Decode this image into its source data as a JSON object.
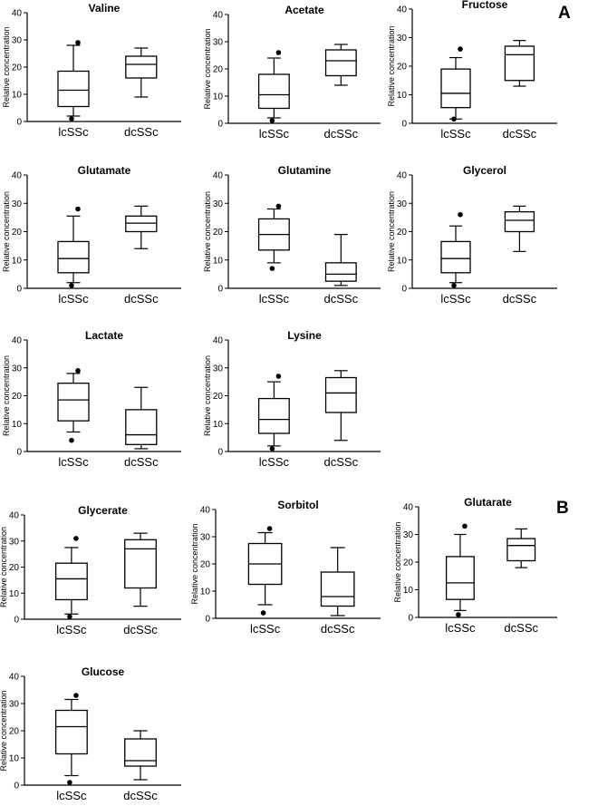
{
  "panel_labels": {
    "a": "A",
    "b": "B"
  },
  "common": {
    "ylabel": "Relative concentration",
    "categories": [
      "lcSSc",
      "dcSSc"
    ],
    "yticks": [
      "0",
      "10",
      "20",
      "30",
      "40"
    ],
    "ylim": [
      0,
      40
    ]
  },
  "chart_data": [
    {
      "type": "box",
      "panel": "A",
      "title": "Valine",
      "ylabel": "Relative concentration",
      "categories": [
        "lcSSc",
        "dcSSc"
      ],
      "ylim": [
        0,
        40
      ],
      "series": [
        {
          "name": "lcSSc",
          "min": 2,
          "q1": 5.5,
          "median": 11.5,
          "q3": 18.5,
          "max": 28,
          "outliers": [
            29,
            1
          ]
        },
        {
          "name": "dcSSc",
          "min": 9,
          "q1": 16,
          "median": 21,
          "q3": 24,
          "max": 27,
          "outliers": []
        }
      ]
    },
    {
      "type": "box",
      "panel": "A",
      "title": "Acetate",
      "ylabel": "Relative concentration",
      "categories": [
        "lcSSc",
        "dcSSc"
      ],
      "ylim": [
        0,
        40
      ],
      "series": [
        {
          "name": "lcSSc",
          "min": 2,
          "q1": 5.5,
          "median": 10.5,
          "q3": 18,
          "max": 24,
          "outliers": [
            26,
            1
          ]
        },
        {
          "name": "dcSSc",
          "min": 14,
          "q1": 17.5,
          "median": 23,
          "q3": 27,
          "max": 29,
          "outliers": []
        }
      ]
    },
    {
      "type": "box",
      "panel": "A",
      "title": "Fructose",
      "ylabel": "Relative concentration",
      "categories": [
        "lcSSc",
        "dcSSc"
      ],
      "ylim": [
        0,
        40
      ],
      "series": [
        {
          "name": "lcSSc",
          "min": 1.5,
          "q1": 5.5,
          "median": 10.5,
          "q3": 19,
          "max": 23,
          "outliers": [
            26,
            1.5
          ]
        },
        {
          "name": "dcSSc",
          "min": 13,
          "q1": 15,
          "median": 24,
          "q3": 27,
          "max": 29,
          "outliers": []
        }
      ]
    },
    {
      "type": "box",
      "panel": "A",
      "title": "Glutamate",
      "ylabel": "Relative concentration",
      "categories": [
        "lcSSc",
        "dcSSc"
      ],
      "ylim": [
        0,
        40
      ],
      "series": [
        {
          "name": "lcSSc",
          "min": 2,
          "q1": 5.5,
          "median": 10.5,
          "q3": 16.5,
          "max": 25.5,
          "outliers": [
            28,
            1
          ]
        },
        {
          "name": "dcSSc",
          "min": 14,
          "q1": 20,
          "median": 23,
          "q3": 25.5,
          "max": 29,
          "outliers": []
        }
      ]
    },
    {
      "type": "box",
      "panel": "A",
      "title": "Glutamine",
      "ylabel": "Relative concentration",
      "categories": [
        "lcSSc",
        "dcSSc"
      ],
      "ylim": [
        0,
        40
      ],
      "series": [
        {
          "name": "lcSSc",
          "min": 9,
          "q1": 13.5,
          "median": 19,
          "q3": 24.5,
          "max": 28,
          "outliers": [
            29,
            7
          ]
        },
        {
          "name": "dcSSc",
          "min": 1,
          "q1": 2.5,
          "median": 5,
          "q3": 9,
          "max": 19,
          "outliers": []
        }
      ]
    },
    {
      "type": "box",
      "panel": "A",
      "title": "Glycerol",
      "ylabel": "Relative concentration",
      "categories": [
        "lcSSc",
        "dcSSc"
      ],
      "ylim": [
        0,
        40
      ],
      "series": [
        {
          "name": "lcSSc",
          "min": 2,
          "q1": 5.5,
          "median": 10.5,
          "q3": 16.5,
          "max": 22,
          "outliers": [
            26,
            1
          ]
        },
        {
          "name": "dcSSc",
          "min": 13,
          "q1": 20,
          "median": 24,
          "q3": 27,
          "max": 29,
          "outliers": []
        }
      ]
    },
    {
      "type": "box",
      "panel": "A",
      "title": "Lactate",
      "ylabel": "Relative concentration",
      "categories": [
        "lcSSc",
        "dcSSc"
      ],
      "ylim": [
        0,
        40
      ],
      "series": [
        {
          "name": "lcSSc",
          "min": 7,
          "q1": 11,
          "median": 18.5,
          "q3": 24.5,
          "max": 28,
          "outliers": [
            29,
            4
          ]
        },
        {
          "name": "dcSSc",
          "min": 1,
          "q1": 2.5,
          "median": 6,
          "q3": 15,
          "max": 23,
          "outliers": []
        }
      ]
    },
    {
      "type": "box",
      "panel": "A",
      "title": "Lysine",
      "ylabel": "Relative concentration",
      "categories": [
        "lcSSc",
        "dcSSc"
      ],
      "ylim": [
        0,
        40
      ],
      "series": [
        {
          "name": "lcSSc",
          "min": 2,
          "q1": 6.5,
          "median": 11.5,
          "q3": 19,
          "max": 25,
          "outliers": [
            27,
            1
          ]
        },
        {
          "name": "dcSSc",
          "min": 4,
          "q1": 14,
          "median": 21,
          "q3": 26.5,
          "max": 29,
          "outliers": []
        }
      ]
    },
    {
      "type": "box",
      "panel": "B",
      "title": "Glycerate",
      "ylabel": "Relative concentration",
      "categories": [
        "lcSSc",
        "dcSSc"
      ],
      "ylim": [
        0,
        40
      ],
      "series": [
        {
          "name": "lcSSc",
          "min": 2,
          "q1": 7.5,
          "median": 15.5,
          "q3": 21.5,
          "max": 27.5,
          "outliers": [
            31,
            1
          ]
        },
        {
          "name": "dcSSc",
          "min": 5,
          "q1": 12,
          "median": 27,
          "q3": 30.5,
          "max": 33,
          "outliers": []
        }
      ]
    },
    {
      "type": "box",
      "panel": "B",
      "title": "Sorbitol",
      "ylabel": "Relative concentration",
      "categories": [
        "lcSSc",
        "dcSSc"
      ],
      "ylim": [
        0,
        40
      ],
      "series": [
        {
          "name": "lcSSc",
          "min": 5,
          "q1": 12.5,
          "median": 20,
          "q3": 27.5,
          "max": 31.5,
          "outliers": [
            33,
            2
          ]
        },
        {
          "name": "dcSSc",
          "min": 1,
          "q1": 4.5,
          "median": 8,
          "q3": 17,
          "max": 26,
          "outliers": []
        }
      ]
    },
    {
      "type": "box",
      "panel": "B",
      "title": "Glutarate",
      "ylabel": "Relative concentration",
      "categories": [
        "lcSSc",
        "dcSSc"
      ],
      "ylim": [
        0,
        40
      ],
      "series": [
        {
          "name": "lcSSc",
          "min": 2.5,
          "q1": 6.5,
          "median": 12.5,
          "q3": 22,
          "max": 30,
          "outliers": [
            33,
            1
          ]
        },
        {
          "name": "dcSSc",
          "min": 18,
          "q1": 20.5,
          "median": 26,
          "q3": 28.5,
          "max": 32,
          "outliers": []
        }
      ]
    },
    {
      "type": "box",
      "panel": "B",
      "title": "Glucose",
      "ylabel": "Relative concentration",
      "categories": [
        "lcSSc",
        "dcSSc"
      ],
      "ylim": [
        0,
        40
      ],
      "series": [
        {
          "name": "lcSSc",
          "min": 3.5,
          "q1": 11.5,
          "median": 21.5,
          "q3": 27.5,
          "max": 31.5,
          "outliers": [
            33,
            1
          ]
        },
        {
          "name": "dcSSc",
          "min": 2,
          "q1": 7,
          "median": 9,
          "q3": 17,
          "max": 20,
          "outliers": []
        }
      ]
    }
  ]
}
